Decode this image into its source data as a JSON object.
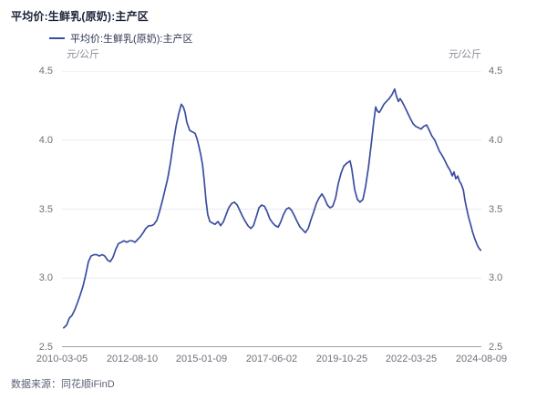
{
  "title": "平均价:生鲜乳(原奶):主产区",
  "legend": {
    "label": "平均价:生鲜乳(原奶):主产区"
  },
  "axis_unit_left": "元/公斤",
  "axis_unit_right": "元/公斤",
  "source": "数据来源：同花顺iFinD",
  "colors": {
    "line": "#3b4da0",
    "title_text": "#1b2238",
    "legend_text": "#2c3552",
    "axis_text": "#70717b",
    "unit_text": "#8b8c96",
    "grid": "#e9eaf1",
    "axis_line": "#a0a3ae",
    "source_text": "#5d6378"
  },
  "chart_data": {
    "type": "line",
    "title": "平均价:生鲜乳(原奶):主产区",
    "xlabel": "",
    "ylabel": "元/公斤",
    "ylim": [
      2.5,
      4.5
    ],
    "grid": "horizontal",
    "legend_position": "top-left",
    "x_ticks": [
      "2010-03-05",
      "2012-08-10",
      "2015-01-09",
      "2017-06-02",
      "2019-10-25",
      "2022-03-25",
      "2024-08-09"
    ],
    "y_ticks": [
      "2.5",
      "3.0",
      "3.5",
      "4.0",
      "4.5"
    ],
    "x_range_decimal_years": [
      2010.17,
      2024.58
    ],
    "series": [
      {
        "name": "平均价:生鲜乳(原奶):主产区",
        "points": [
          [
            2010.23,
            2.64
          ],
          [
            2010.33,
            2.66
          ],
          [
            2010.42,
            2.71
          ],
          [
            2010.51,
            2.73
          ],
          [
            2010.61,
            2.77
          ],
          [
            2010.7,
            2.82
          ],
          [
            2010.8,
            2.88
          ],
          [
            2010.89,
            2.94
          ],
          [
            2010.98,
            3.02
          ],
          [
            2011.08,
            3.12
          ],
          [
            2011.17,
            3.16
          ],
          [
            2011.27,
            3.17
          ],
          [
            2011.36,
            3.17
          ],
          [
            2011.45,
            3.16
          ],
          [
            2011.55,
            3.17
          ],
          [
            2011.64,
            3.16
          ],
          [
            2011.74,
            3.13
          ],
          [
            2011.83,
            3.12
          ],
          [
            2011.92,
            3.15
          ],
          [
            2012.02,
            3.21
          ],
          [
            2012.11,
            3.25
          ],
          [
            2012.21,
            3.26
          ],
          [
            2012.3,
            3.27
          ],
          [
            2012.39,
            3.26
          ],
          [
            2012.49,
            3.27
          ],
          [
            2012.58,
            3.27
          ],
          [
            2012.68,
            3.26
          ],
          [
            2012.77,
            3.28
          ],
          [
            2012.86,
            3.3
          ],
          [
            2012.96,
            3.33
          ],
          [
            2013.05,
            3.36
          ],
          [
            2013.15,
            3.38
          ],
          [
            2013.24,
            3.38
          ],
          [
            2013.33,
            3.39
          ],
          [
            2013.43,
            3.42
          ],
          [
            2013.52,
            3.48
          ],
          [
            2013.62,
            3.56
          ],
          [
            2013.71,
            3.64
          ],
          [
            2013.8,
            3.72
          ],
          [
            2013.9,
            3.84
          ],
          [
            2013.99,
            3.97
          ],
          [
            2014.09,
            4.1
          ],
          [
            2014.18,
            4.19
          ],
          [
            2014.27,
            4.26
          ],
          [
            2014.34,
            4.24
          ],
          [
            2014.4,
            4.2
          ],
          [
            2014.46,
            4.13
          ],
          [
            2014.56,
            4.07
          ],
          [
            2014.65,
            4.06
          ],
          [
            2014.74,
            4.05
          ],
          [
            2014.81,
            4.01
          ],
          [
            2014.87,
            3.96
          ],
          [
            2014.93,
            3.9
          ],
          [
            2015.0,
            3.82
          ],
          [
            2015.06,
            3.7
          ],
          [
            2015.12,
            3.56
          ],
          [
            2015.18,
            3.46
          ],
          [
            2015.25,
            3.41
          ],
          [
            2015.34,
            3.4
          ],
          [
            2015.43,
            3.39
          ],
          [
            2015.53,
            3.41
          ],
          [
            2015.62,
            3.38
          ],
          [
            2015.72,
            3.41
          ],
          [
            2015.81,
            3.46
          ],
          [
            2015.9,
            3.51
          ],
          [
            2016.0,
            3.54
          ],
          [
            2016.09,
            3.55
          ],
          [
            2016.19,
            3.53
          ],
          [
            2016.28,
            3.49
          ],
          [
            2016.37,
            3.45
          ],
          [
            2016.47,
            3.41
          ],
          [
            2016.56,
            3.38
          ],
          [
            2016.66,
            3.36
          ],
          [
            2016.75,
            3.38
          ],
          [
            2016.84,
            3.44
          ],
          [
            2016.94,
            3.51
          ],
          [
            2017.03,
            3.53
          ],
          [
            2017.13,
            3.52
          ],
          [
            2017.22,
            3.48
          ],
          [
            2017.31,
            3.43
          ],
          [
            2017.41,
            3.4
          ],
          [
            2017.5,
            3.38
          ],
          [
            2017.6,
            3.37
          ],
          [
            2017.69,
            3.41
          ],
          [
            2017.78,
            3.46
          ],
          [
            2017.88,
            3.5
          ],
          [
            2017.97,
            3.51
          ],
          [
            2018.06,
            3.49
          ],
          [
            2018.16,
            3.45
          ],
          [
            2018.25,
            3.41
          ],
          [
            2018.35,
            3.37
          ],
          [
            2018.44,
            3.35
          ],
          [
            2018.53,
            3.33
          ],
          [
            2018.63,
            3.36
          ],
          [
            2018.72,
            3.42
          ],
          [
            2018.82,
            3.48
          ],
          [
            2018.91,
            3.54
          ],
          [
            2019.0,
            3.58
          ],
          [
            2019.1,
            3.61
          ],
          [
            2019.19,
            3.58
          ],
          [
            2019.29,
            3.53
          ],
          [
            2019.38,
            3.51
          ],
          [
            2019.47,
            3.52
          ],
          [
            2019.57,
            3.58
          ],
          [
            2019.66,
            3.68
          ],
          [
            2019.76,
            3.76
          ],
          [
            2019.85,
            3.81
          ],
          [
            2019.94,
            3.83
          ],
          [
            2020.01,
            3.84
          ],
          [
            2020.07,
            3.85
          ],
          [
            2020.13,
            3.79
          ],
          [
            2020.23,
            3.64
          ],
          [
            2020.32,
            3.57
          ],
          [
            2020.41,
            3.55
          ],
          [
            2020.51,
            3.57
          ],
          [
            2020.6,
            3.66
          ],
          [
            2020.7,
            3.8
          ],
          [
            2020.79,
            3.96
          ],
          [
            2020.88,
            4.13
          ],
          [
            2020.95,
            4.24
          ],
          [
            2021.01,
            4.21
          ],
          [
            2021.07,
            4.2
          ],
          [
            2021.13,
            4.22
          ],
          [
            2021.23,
            4.26
          ],
          [
            2021.32,
            4.28
          ],
          [
            2021.41,
            4.3
          ],
          [
            2021.51,
            4.33
          ],
          [
            2021.6,
            4.37
          ],
          [
            2021.66,
            4.32
          ],
          [
            2021.73,
            4.28
          ],
          [
            2021.79,
            4.3
          ],
          [
            2021.85,
            4.28
          ],
          [
            2021.95,
            4.24
          ],
          [
            2022.04,
            4.2
          ],
          [
            2022.13,
            4.16
          ],
          [
            2022.23,
            4.12
          ],
          [
            2022.32,
            4.1
          ],
          [
            2022.42,
            4.09
          ],
          [
            2022.51,
            4.08
          ],
          [
            2022.6,
            4.1
          ],
          [
            2022.7,
            4.11
          ],
          [
            2022.79,
            4.07
          ],
          [
            2022.88,
            4.03
          ],
          [
            2022.98,
            4.0
          ],
          [
            2023.04,
            3.97
          ],
          [
            2023.14,
            3.92
          ],
          [
            2023.23,
            3.89
          ],
          [
            2023.33,
            3.85
          ],
          [
            2023.42,
            3.81
          ],
          [
            2023.51,
            3.78
          ],
          [
            2023.58,
            3.74
          ],
          [
            2023.64,
            3.77
          ],
          [
            2023.7,
            3.72
          ],
          [
            2023.77,
            3.74
          ],
          [
            2023.83,
            3.7
          ],
          [
            2023.89,
            3.68
          ],
          [
            2023.96,
            3.64
          ],
          [
            2024.02,
            3.56
          ],
          [
            2024.08,
            3.5
          ],
          [
            2024.14,
            3.44
          ],
          [
            2024.21,
            3.39
          ],
          [
            2024.27,
            3.34
          ],
          [
            2024.33,
            3.3
          ],
          [
            2024.4,
            3.26
          ],
          [
            2024.46,
            3.23
          ],
          [
            2024.52,
            3.21
          ],
          [
            2024.58,
            3.2
          ]
        ]
      }
    ]
  }
}
